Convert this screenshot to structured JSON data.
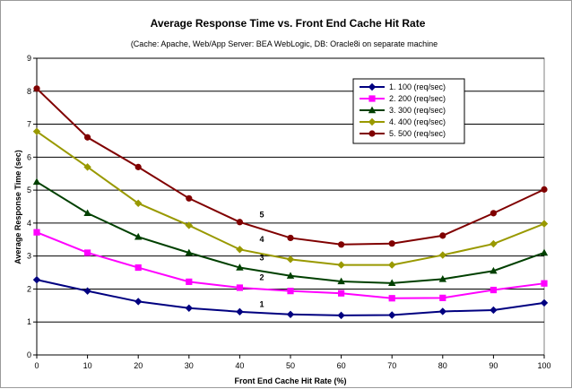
{
  "chart_data": {
    "type": "line",
    "title": "Average Response Time vs. Front End Cache Hit Rate",
    "subtitle": "(Cache: Apache, Web/App Server: BEA WebLogic, DB: Oracle8i on separate machine",
    "xlabel": "Front End Cache Hit Rate (%)",
    "ylabel": "Average Response Time (sec)",
    "xlim": [
      0,
      100
    ],
    "ylim": [
      0,
      9
    ],
    "x": [
      0,
      10,
      20,
      30,
      40,
      50,
      60,
      70,
      80,
      90,
      100
    ],
    "x_ticks": [
      "0",
      "10",
      "20",
      "30",
      "40",
      "50",
      "60",
      "70",
      "80",
      "90",
      "100"
    ],
    "y_ticks": [
      "0",
      "1",
      "2",
      "3",
      "4",
      "5",
      "6",
      "7",
      "8",
      "9"
    ],
    "grid": "horizontal",
    "legend_position": "top-right",
    "series": [
      {
        "name": "1. 100 (req/sec)",
        "color": "#000080",
        "marker": "diamond",
        "values": [
          2.28,
          1.94,
          1.62,
          1.42,
          1.31,
          1.23,
          1.2,
          1.21,
          1.32,
          1.36,
          1.58
        ]
      },
      {
        "name": "2. 200 (req/sec)",
        "color": "#ff00ff",
        "marker": "square",
        "values": [
          3.72,
          3.1,
          2.65,
          2.22,
          2.04,
          1.94,
          1.87,
          1.72,
          1.73,
          1.97,
          2.17
        ]
      },
      {
        "name": "3. 300 (req/sec)",
        "color": "#004000",
        "marker": "triangle",
        "values": [
          5.25,
          4.3,
          3.58,
          3.1,
          2.65,
          2.4,
          2.23,
          2.18,
          2.3,
          2.55,
          3.1
        ]
      },
      {
        "name": "4. 400 (req/sec)",
        "color": "#999900",
        "marker": "diamond",
        "values": [
          6.78,
          5.7,
          4.6,
          3.93,
          3.2,
          2.9,
          2.73,
          2.73,
          3.03,
          3.37,
          3.98
        ]
      },
      {
        "name": "5. 500 (req/sec)",
        "color": "#800000",
        "marker": "circle",
        "values": [
          8.08,
          6.6,
          5.7,
          4.75,
          4.03,
          3.55,
          3.35,
          3.38,
          3.62,
          4.3,
          5.02
        ]
      }
    ],
    "annotations": [
      {
        "text": "1",
        "x": 50,
        "y": 1.45
      },
      {
        "text": "2",
        "x": 50,
        "y": 2.27
      },
      {
        "text": "3",
        "x": 50,
        "y": 2.87
      },
      {
        "text": "4",
        "x": 50,
        "y": 3.42
      },
      {
        "text": "5",
        "x": 50,
        "y": 4.18
      }
    ]
  }
}
